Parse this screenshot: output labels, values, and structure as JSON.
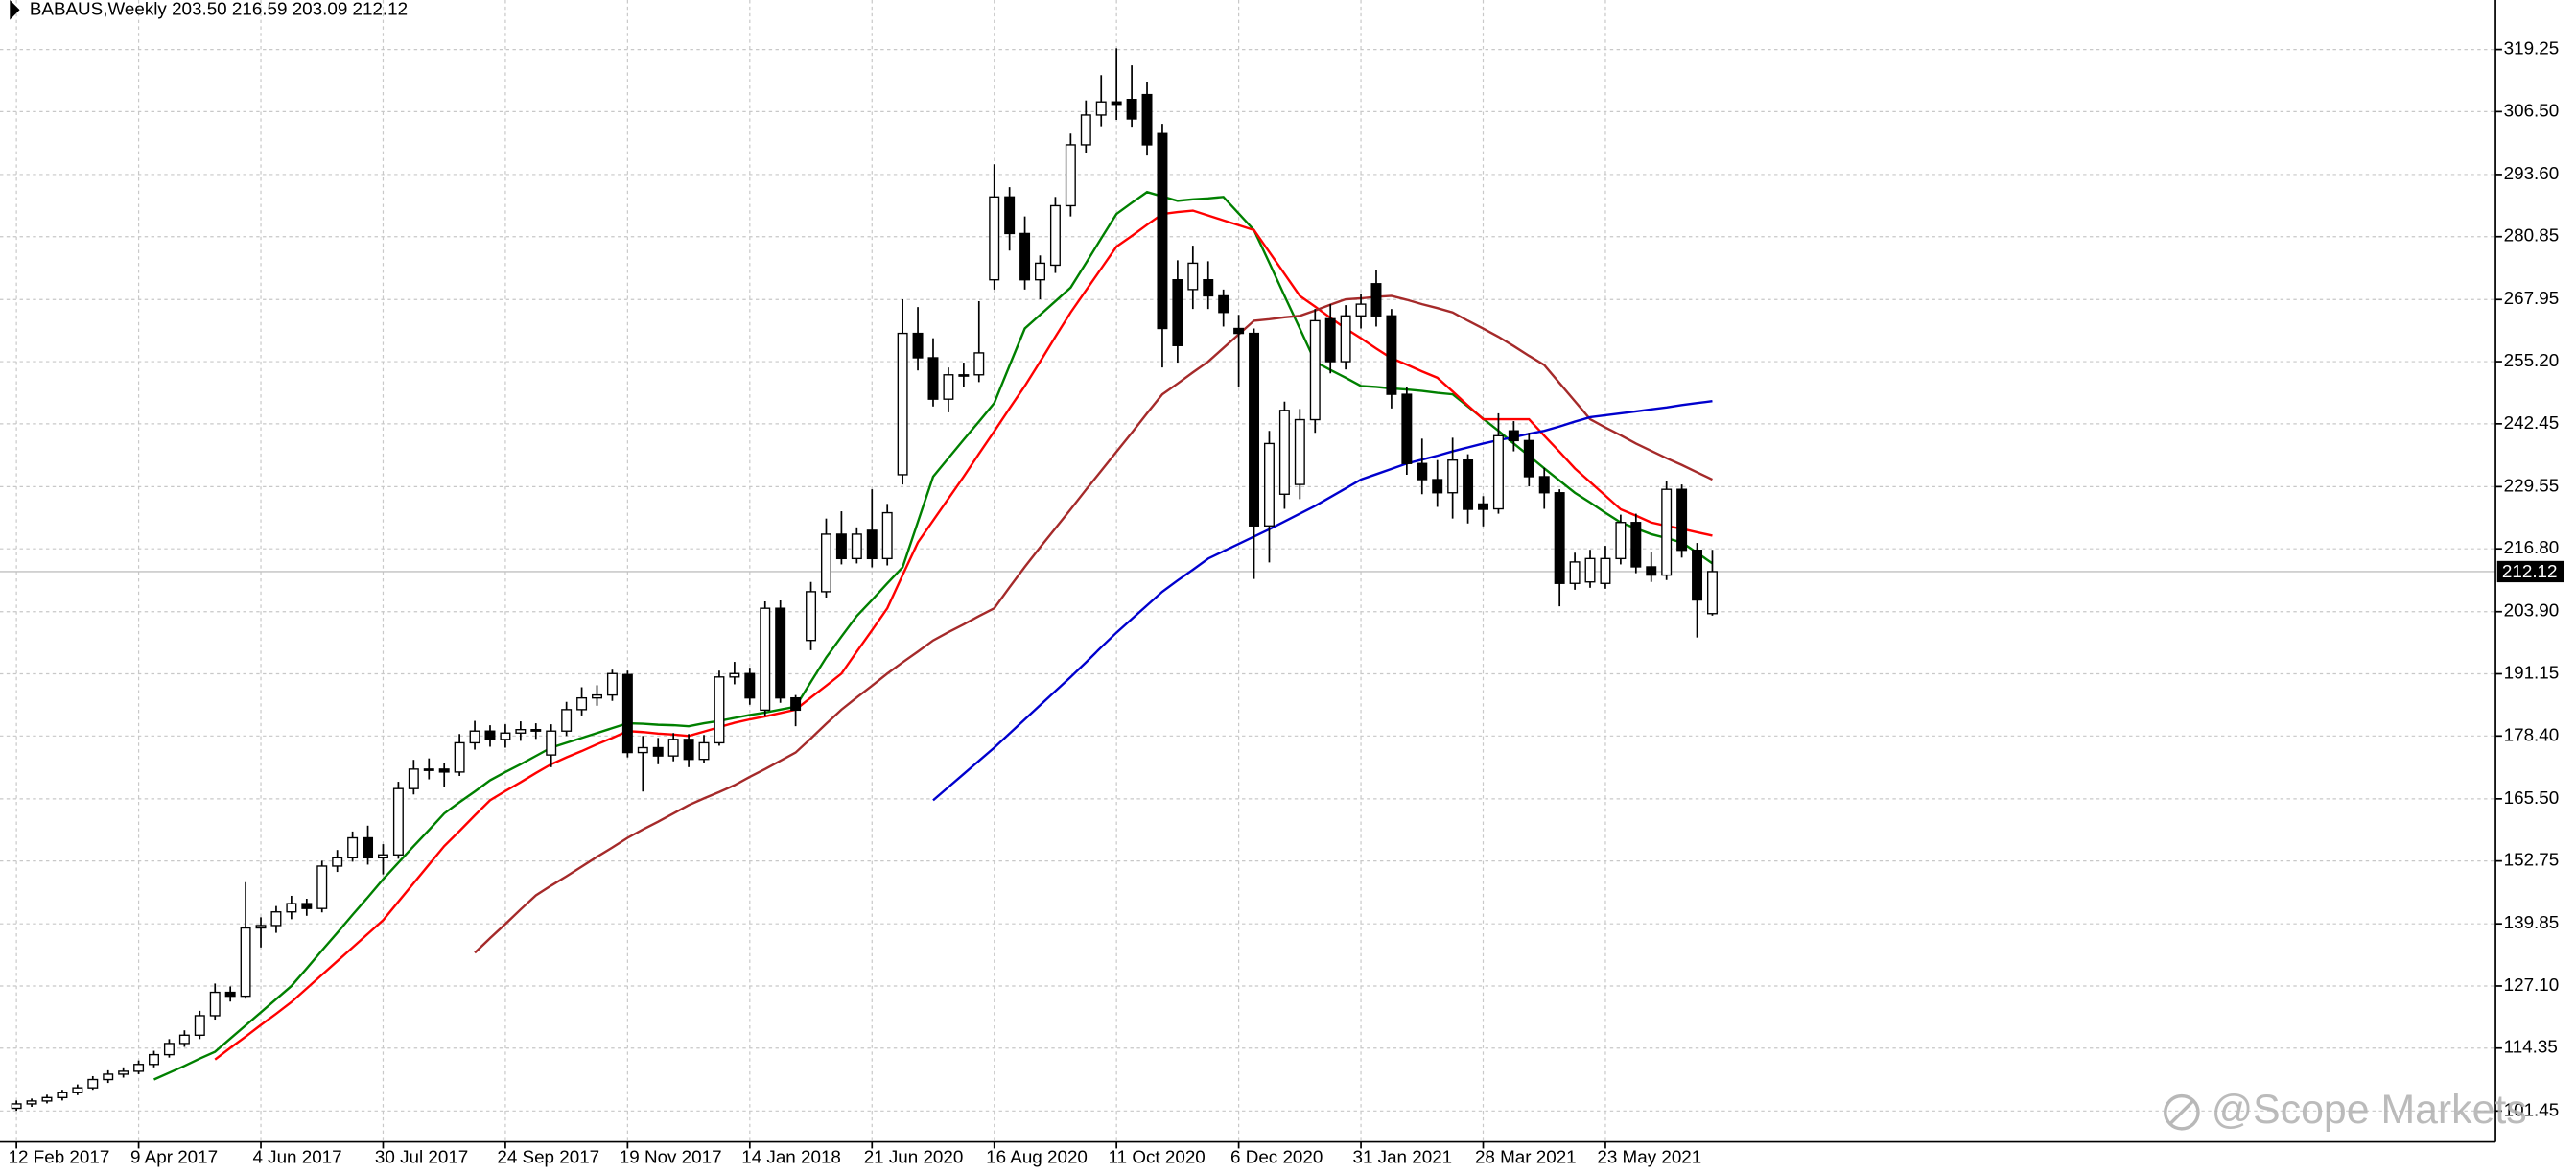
{
  "chart_data": {
    "type": "candlestick",
    "header": "BABAUS,Weekly  203.50 216.59 203.09 212.12",
    "watermark": "@Scope Markets",
    "last_price": 212.12,
    "grid": true,
    "up_color": "#ffffff",
    "down_color": "#000000",
    "ylim": [
      95.1,
      329.4
    ],
    "yticks": [
      {
        "value": 101.45,
        "label": "101.45"
      },
      114.35,
      {
        "value": 127.1,
        "label": "127.10"
      },
      139.85,
      152.75,
      {
        "value": 165.5,
        "label": "165.50"
      },
      {
        "value": 178.4,
        "label": "178.40"
      },
      191.15,
      {
        "value": 203.9,
        "label": "203.90"
      },
      {
        "value": 216.8,
        "label": "216.80"
      },
      229.55,
      242.45,
      {
        "value": 255.2,
        "label": "255.20"
      },
      267.95,
      280.85,
      {
        "value": 293.6,
        "label": "293.60"
      },
      {
        "value": 306.5,
        "label": "306.50"
      },
      319.25
    ],
    "categories": [
      "12 Feb 2017",
      null,
      null,
      null,
      null,
      null,
      null,
      null,
      "9 Apr 2017",
      null,
      null,
      null,
      null,
      null,
      null,
      null,
      "4 Jun 2017",
      null,
      null,
      null,
      null,
      null,
      null,
      null,
      "30 Jul 2017",
      null,
      null,
      null,
      null,
      null,
      null,
      null,
      "24 Sep 2017",
      null,
      null,
      null,
      null,
      null,
      null,
      null,
      "19 Nov 2017",
      null,
      null,
      null,
      null,
      null,
      null,
      null,
      "14 Jan 2018",
      null,
      null,
      null,
      null,
      null,
      null,
      null,
      "21 Jun 2020",
      null,
      null,
      null,
      null,
      null,
      null,
      null,
      "16 Aug 2020",
      null,
      null,
      null,
      null,
      null,
      null,
      null,
      "11 Oct 2020",
      null,
      null,
      null,
      null,
      null,
      null,
      null,
      "6 Dec 2020",
      null,
      null,
      null,
      null,
      null,
      null,
      null,
      "31 Jan 2021",
      null,
      null,
      null,
      null,
      null,
      null,
      null,
      "28 Mar 2021",
      null,
      null,
      null,
      null,
      null,
      null,
      null,
      "23 May 2021",
      null,
      null,
      null,
      null,
      null,
      null,
      null
    ],
    "candles": [
      [
        102.0,
        103.6,
        101.5,
        102.9
      ],
      [
        102.9,
        104.0,
        102.3,
        103.5
      ],
      [
        103.5,
        104.8,
        103.0,
        104.2
      ],
      [
        104.2,
        105.8,
        103.6,
        105.2
      ],
      [
        105.2,
        106.9,
        104.7,
        106.2
      ],
      [
        106.2,
        108.6,
        105.8,
        107.9
      ],
      [
        107.9,
        109.8,
        107.2,
        109.0
      ],
      [
        109.0,
        110.4,
        108.3,
        109.6
      ],
      [
        109.6,
        111.8,
        109.0,
        111.0
      ],
      [
        111.0,
        113.8,
        110.4,
        113.0
      ],
      [
        113.0,
        116.2,
        112.4,
        115.3
      ],
      [
        115.3,
        118.0,
        114.6,
        117.0
      ],
      [
        117.0,
        122.0,
        116.2,
        121.0
      ],
      [
        121.0,
        127.6,
        120.2,
        125.8
      ],
      [
        125.8,
        127.0,
        123.9,
        125.0
      ],
      [
        125.0,
        148.4,
        124.5,
        139.0
      ],
      [
        139.0,
        141.2,
        135.0,
        139.5
      ],
      [
        139.5,
        143.5,
        138.0,
        142.3
      ],
      [
        142.3,
        145.6,
        140.8,
        144.0
      ],
      [
        144.0,
        145.0,
        141.5,
        143.0
      ],
      [
        143.0,
        152.8,
        142.2,
        151.7
      ],
      [
        151.7,
        155.0,
        150.5,
        153.4
      ],
      [
        153.4,
        158.8,
        152.6,
        157.5
      ],
      [
        157.5,
        160.0,
        152.0,
        153.4
      ],
      [
        153.4,
        156.2,
        150.0,
        154.0
      ],
      [
        154.0,
        169.0,
        153.2,
        167.6
      ],
      [
        167.6,
        173.5,
        166.4,
        171.6
      ],
      [
        171.6,
        173.8,
        169.5,
        171.6
      ],
      [
        171.6,
        172.8,
        168.0,
        171.0
      ],
      [
        171.0,
        178.8,
        170.2,
        177.0
      ],
      [
        177.0,
        181.5,
        175.6,
        179.4
      ],
      [
        179.4,
        180.6,
        176.2,
        177.7
      ],
      [
        177.7,
        180.8,
        176.0,
        179.0
      ],
      [
        179.0,
        181.4,
        177.4,
        179.7
      ],
      [
        179.7,
        181.0,
        177.8,
        179.4
      ],
      [
        174.5,
        180.8,
        172.0,
        179.4
      ],
      [
        179.4,
        185.4,
        178.4,
        183.8
      ],
      [
        183.8,
        188.4,
        182.6,
        186.2
      ],
      [
        186.2,
        188.8,
        184.6,
        186.8
      ],
      [
        186.8,
        192.0,
        185.6,
        191.2
      ],
      [
        191.0,
        191.8,
        174.0,
        175.0
      ],
      [
        175.0,
        178.4,
        167.0,
        176.0
      ],
      [
        176.0,
        178.0,
        172.6,
        174.3
      ],
      [
        174.3,
        179.0,
        173.2,
        177.7
      ],
      [
        177.7,
        178.8,
        172.0,
        173.6
      ],
      [
        173.6,
        178.6,
        172.8,
        177.0
      ],
      [
        177.0,
        191.8,
        176.4,
        190.5
      ],
      [
        190.5,
        193.6,
        189.0,
        191.2
      ],
      [
        191.2,
        192.4,
        184.8,
        186.2
      ],
      [
        183.7,
        206.0,
        182.6,
        204.6
      ],
      [
        204.6,
        206.2,
        185.2,
        186.2
      ],
      [
        186.2,
        186.8,
        180.4,
        183.7
      ],
      [
        198.0,
        210.0,
        196.0,
        208.0
      ],
      [
        208.0,
        223.0,
        206.8,
        219.8
      ],
      [
        219.8,
        224.5,
        213.6,
        214.8
      ],
      [
        214.8,
        221.2,
        213.8,
        219.8
      ],
      [
        220.6,
        229.0,
        213.0,
        214.8
      ],
      [
        214.8,
        226.0,
        213.4,
        224.2
      ],
      [
        232.0,
        268.0,
        230.0,
        261.0
      ],
      [
        261.0,
        266.4,
        253.4,
        256.0
      ],
      [
        256.0,
        260.0,
        246.0,
        247.5
      ],
      [
        247.5,
        254.0,
        244.8,
        252.5
      ],
      [
        252.5,
        255.0,
        250.0,
        252.5
      ],
      [
        252.5,
        267.6,
        251.0,
        257.0
      ],
      [
        272.0,
        295.7,
        270.0,
        289.0
      ],
      [
        289.0,
        291.0,
        278.0,
        281.5
      ],
      [
        281.5,
        285.0,
        270.0,
        272.0
      ],
      [
        272.0,
        277.0,
        268.0,
        275.4
      ],
      [
        275.0,
        289.0,
        273.4,
        287.2
      ],
      [
        287.2,
        302.0,
        285.0,
        299.7
      ],
      [
        299.7,
        308.8,
        298.0,
        305.8
      ],
      [
        305.8,
        314.0,
        303.5,
        308.5
      ],
      [
        308.5,
        319.5,
        304.8,
        308.0
      ],
      [
        309.0,
        316.0,
        303.4,
        305.0
      ],
      [
        310.0,
        312.5,
        297.5,
        299.7
      ],
      [
        302.0,
        304.0,
        254.0,
        262.0
      ],
      [
        272.0,
        276.0,
        255.0,
        258.5
      ],
      [
        270.0,
        279.0,
        266.0,
        275.4
      ],
      [
        272.0,
        275.8,
        266.0,
        268.7
      ],
      [
        268.7,
        270.0,
        262.4,
        265.3
      ],
      [
        262.0,
        264.8,
        250.0,
        261.0
      ],
      [
        261.0,
        262.0,
        210.6,
        221.5
      ],
      [
        221.5,
        241.0,
        214.0,
        238.4
      ],
      [
        228.0,
        247.0,
        225.0,
        245.2
      ],
      [
        230.0,
        245.5,
        227.0,
        243.3
      ],
      [
        243.3,
        266.0,
        240.6,
        263.6
      ],
      [
        264.0,
        267.0,
        252.8,
        255.2
      ],
      [
        255.2,
        266.8,
        253.6,
        264.6
      ],
      [
        264.6,
        269.2,
        262.0,
        267.0
      ],
      [
        271.2,
        274.0,
        262.4,
        264.6
      ],
      [
        264.6,
        266.0,
        245.6,
        248.5
      ],
      [
        248.5,
        250.0,
        232.0,
        234.3
      ],
      [
        234.3,
        239.4,
        228.0,
        231.0
      ],
      [
        231.0,
        235.0,
        225.4,
        228.3
      ],
      [
        228.3,
        239.6,
        223.0,
        235.0
      ],
      [
        235.0,
        236.2,
        222.0,
        224.9
      ],
      [
        226.0,
        227.6,
        221.4,
        224.9
      ],
      [
        225.0,
        244.6,
        224.0,
        240.0
      ],
      [
        241.0,
        243.0,
        236.8,
        239.0
      ],
      [
        239.0,
        240.6,
        229.6,
        231.6
      ],
      [
        231.6,
        233.4,
        225.0,
        228.3
      ],
      [
        228.3,
        229.0,
        205.0,
        209.7
      ],
      [
        209.7,
        216.0,
        208.4,
        214.1
      ],
      [
        210.0,
        216.6,
        208.8,
        214.8
      ],
      [
        209.7,
        217.4,
        208.6,
        214.8
      ],
      [
        214.8,
        223.8,
        213.6,
        222.2
      ],
      [
        222.2,
        224.0,
        211.8,
        213.1
      ],
      [
        213.1,
        216.2,
        210.0,
        211.4
      ],
      [
        211.4,
        230.6,
        210.4,
        229.0
      ],
      [
        229.0,
        230.0,
        215.0,
        216.5
      ],
      [
        216.5,
        218.0,
        198.6,
        206.3
      ],
      [
        203.5,
        216.59,
        203.09,
        212.12
      ]
    ],
    "series": [
      {
        "color": "#008000",
        "values": [
          null,
          null,
          null,
          null,
          null,
          null,
          null,
          null,
          null,
          107.9,
          109.3,
          110.7,
          112.2,
          113.6,
          116.3,
          119,
          121.7,
          124.4,
          127.1,
          130.7,
          134.4,
          138,
          141.7,
          145.3,
          149,
          152.4,
          155.8,
          159.1,
          162.5,
          164.8,
          167,
          169.3,
          171,
          172.6,
          174.3,
          176,
          177,
          178,
          179,
          180,
          181,
          180.9,
          180.7,
          180.6,
          180.4,
          181,
          181.5,
          182.1,
          182.7,
          183.2,
          183.8,
          184.4,
          189.5,
          194.5,
          198.8,
          203,
          206.3,
          209.7,
          213,
          222.3,
          231.6,
          235.4,
          239.2,
          242.9,
          246.7,
          254.4,
          262,
          264.8,
          267.6,
          270.4,
          275.4,
          280.5,
          285.5,
          287.8,
          290,
          289.1,
          288.2,
          288.5,
          288.7,
          289,
          285.6,
          282.2,
          275.5,
          268.7,
          262,
          255.2,
          253.5,
          251.9,
          250.2,
          250,
          249.7,
          249.5,
          249.2,
          248.8,
          248.5,
          246,
          243.5,
          241,
          238.4,
          235.9,
          233.3,
          230.8,
          228.3,
          226.3,
          224.2,
          222.2,
          221,
          219.8,
          219,
          218.1,
          216,
          213.8
        ]
      },
      {
        "color": "#ff0000",
        "values": [
          null,
          null,
          null,
          null,
          null,
          null,
          null,
          null,
          null,
          null,
          null,
          null,
          null,
          112,
          114.4,
          116.7,
          119.1,
          121.4,
          123.8,
          126.6,
          129.4,
          132.2,
          135,
          137.8,
          140.6,
          144.4,
          148.2,
          152,
          155.8,
          158.9,
          162.1,
          165.2,
          167.1,
          168.9,
          170.8,
          172.6,
          174,
          175.3,
          176.7,
          178,
          179.4,
          179.2,
          178.9,
          178.7,
          178.4,
          179.3,
          180.2,
          181.1,
          181.8,
          182.4,
          183.1,
          183.8,
          186.3,
          188.7,
          191.2,
          195.7,
          200.1,
          204.6,
          211.4,
          218.1,
          222.6,
          227.1,
          231.6,
          236.3,
          240.9,
          245.6,
          250.2,
          255.2,
          260.3,
          265.3,
          269.8,
          274.3,
          278.8,
          281,
          283.3,
          285.5,
          285.9,
          286.2,
          285.2,
          284.2,
          283.2,
          282.2,
          277.7,
          273.2,
          268.7,
          266.5,
          264.2,
          262,
          260,
          257.9,
          255.9,
          254.6,
          253.2,
          251.9,
          249.1,
          246.2,
          243.4,
          243.4,
          243.4,
          243.4,
          240,
          236.7,
          233.3,
          230.5,
          227.7,
          224.9,
          223.6,
          222.2,
          221.5,
          220.9,
          220.2,
          219.5
        ]
      },
      {
        "color": "#a52a2a",
        "values": [
          null,
          null,
          null,
          null,
          null,
          null,
          null,
          null,
          null,
          null,
          null,
          null,
          null,
          null,
          null,
          null,
          null,
          null,
          null,
          null,
          null,
          null,
          null,
          null,
          null,
          null,
          null,
          null,
          null,
          null,
          133.9,
          136.9,
          139.8,
          142.8,
          145.7,
          147.7,
          149.6,
          151.6,
          153.6,
          155.5,
          157.5,
          159.2,
          160.8,
          162.5,
          164.2,
          165.6,
          166.9,
          168.3,
          170,
          171.6,
          173.3,
          175,
          177.9,
          180.9,
          183.8,
          186.3,
          188.7,
          191.2,
          193.5,
          195.7,
          198,
          199.7,
          201.3,
          203,
          204.6,
          208.9,
          213.1,
          217.1,
          221,
          224.9,
          228.9,
          232.8,
          236.7,
          240.6,
          244.6,
          248.5,
          250.7,
          253,
          255.2,
          258,
          260.8,
          263.6,
          263.9,
          264.3,
          264.6,
          265.7,
          266.9,
          268,
          268.2,
          268.5,
          268.7,
          267.9,
          267,
          266.2,
          265.3,
          263.6,
          262,
          260.3,
          258.4,
          256.4,
          254.5,
          250.8,
          247.1,
          243.4,
          241.7,
          240.1,
          238.4,
          236.9,
          235.4,
          234,
          232.5,
          231
        ]
      },
      {
        "color": "#0000cd",
        "values": [
          null,
          null,
          null,
          null,
          null,
          null,
          null,
          null,
          null,
          null,
          null,
          null,
          null,
          null,
          null,
          null,
          null,
          null,
          null,
          null,
          null,
          null,
          null,
          null,
          null,
          null,
          null,
          null,
          null,
          null,
          null,
          null,
          null,
          null,
          null,
          null,
          null,
          null,
          null,
          null,
          null,
          null,
          null,
          null,
          null,
          null,
          null,
          null,
          null,
          null,
          null,
          null,
          null,
          null,
          null,
          null,
          null,
          null,
          null,
          null,
          165.2,
          167.9,
          170.6,
          173.3,
          176,
          178.9,
          181.8,
          184.7,
          187.6,
          190.5,
          193.5,
          196.6,
          199.6,
          202.4,
          205.2,
          208,
          210.3,
          212.5,
          214.8,
          216.3,
          217.8,
          219.3,
          220.8,
          222.4,
          224,
          225.6,
          227.4,
          229.2,
          231,
          232.1,
          233.2,
          234.3,
          235.1,
          235.9,
          236.8,
          237.6,
          238.4,
          239.1,
          239.7,
          240.4,
          241,
          241.9,
          242.9,
          243.8,
          244.2,
          244.6,
          245,
          245.4,
          245.8,
          246.3,
          246.7,
          247.1
        ]
      }
    ]
  }
}
